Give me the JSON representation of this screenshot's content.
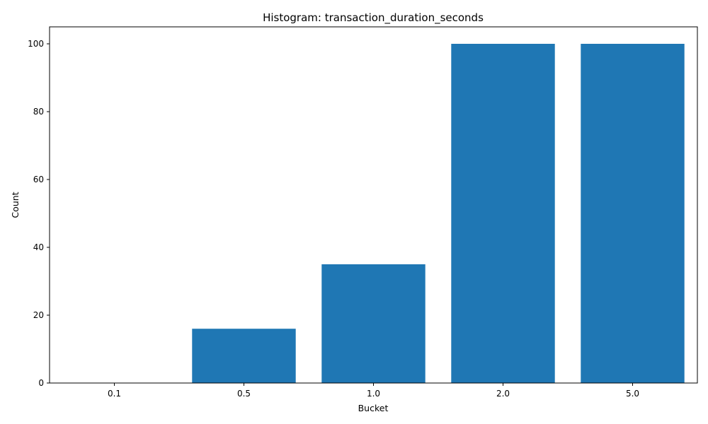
{
  "chart_data": {
    "type": "bar",
    "title": "Histogram: transaction_duration_seconds",
    "xlabel": "Bucket",
    "ylabel": "Count",
    "categories": [
      "0.1",
      "0.5",
      "1.0",
      "2.0",
      "5.0"
    ],
    "values": [
      0,
      16,
      35,
      100,
      100
    ],
    "ylim": [
      0,
      105
    ],
    "yticks": [
      0,
      20,
      40,
      60,
      80,
      100
    ],
    "grid": false,
    "bar_color": "#1f77b4"
  }
}
